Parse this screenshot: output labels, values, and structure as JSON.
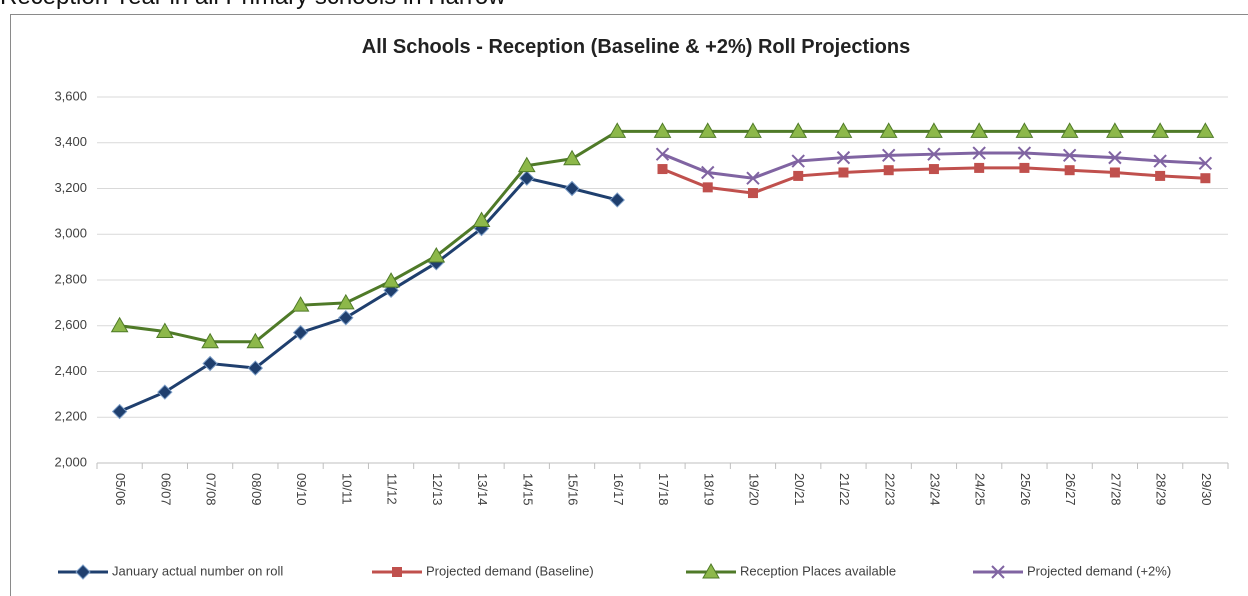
{
  "heading": "Reception Year in all Primary schools in Harrow",
  "chart_data": {
    "type": "line",
    "title": "All Schools - Reception (Baseline & +2%) Roll Projections",
    "categories": [
      "05/06",
      "06/07",
      "07/08",
      "08/09",
      "09/10",
      "10/11",
      "11/12",
      "12/13",
      "13/14",
      "14/15",
      "15/16",
      "16/17",
      "17/18",
      "18/19",
      "19/20",
      "20/21",
      "21/22",
      "22/23",
      "23/24",
      "24/25",
      "25/26",
      "26/27",
      "27/28",
      "28/29",
      "29/30"
    ],
    "series": [
      {
        "name": "January actual number on roll",
        "color": "#1f3f6e",
        "marker": "diamond",
        "values": [
          2225,
          2310,
          2435,
          2415,
          2570,
          2635,
          2755,
          2875,
          3025,
          3245,
          3200,
          3150,
          null,
          null,
          null,
          null,
          null,
          null,
          null,
          null,
          null,
          null,
          null,
          null,
          null
        ]
      },
      {
        "name": "Projected demand (Baseline)",
        "color": "#c0504d",
        "marker": "square",
        "values": [
          null,
          null,
          null,
          null,
          null,
          null,
          null,
          null,
          null,
          null,
          null,
          null,
          3285,
          3205,
          3180,
          3255,
          3270,
          3280,
          3285,
          3290,
          3290,
          3280,
          3270,
          3255,
          3245
        ]
      },
      {
        "name": "Reception Places available",
        "color": "#4f7a28",
        "marker": "triangle",
        "values": [
          2600,
          2575,
          2530,
          2530,
          2690,
          2700,
          2795,
          2905,
          3060,
          3300,
          3330,
          3450,
          3450,
          3450,
          3450,
          3450,
          3450,
          3450,
          3450,
          3450,
          3450,
          3450,
          3450,
          3450,
          3450
        ]
      },
      {
        "name": "Projected demand (+2%)",
        "color": "#8064a2",
        "marker": "x",
        "values": [
          null,
          null,
          null,
          null,
          null,
          null,
          null,
          null,
          null,
          null,
          null,
          null,
          3350,
          3270,
          3245,
          3320,
          3335,
          3345,
          3350,
          3355,
          3355,
          3345,
          3335,
          3320,
          3310
        ]
      }
    ],
    "ylim": [
      2000,
      3600
    ],
    "yticks": [
      {
        "value": 2000,
        "label": "2,000"
      },
      {
        "value": 2200,
        "label": "2,200"
      },
      {
        "value": 2400,
        "label": "2,400"
      },
      {
        "value": 2600,
        "label": "2,600"
      },
      {
        "value": 2800,
        "label": "2,800"
      },
      {
        "value": 3000,
        "label": "3,000"
      },
      {
        "value": 3200,
        "label": "3,200"
      },
      {
        "value": 3400,
        "label": "3,400"
      },
      {
        "value": 3600,
        "label": "3,600"
      }
    ],
    "grid": true,
    "legend": "bottom"
  }
}
